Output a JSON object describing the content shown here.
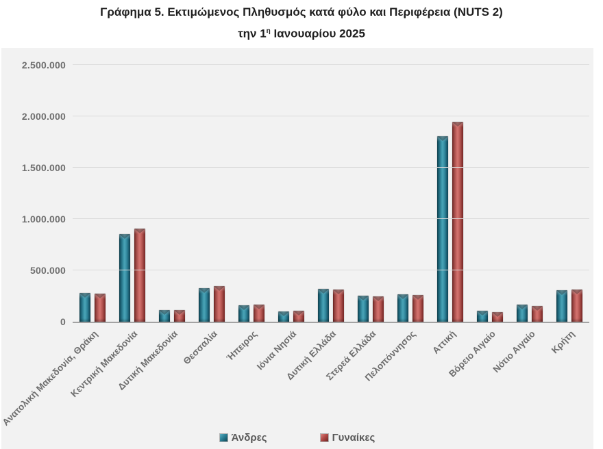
{
  "title": {
    "line1": "Γράφημα 5. Εκτιμώμενος Πληθυσμός κατά φύλο και Περιφέρεια (NUTS 2)",
    "line2_prefix": "την 1",
    "line2_sup": "η",
    "line2_suffix": " Ιανουαρίου 2025"
  },
  "colors": {
    "men_accent": "#2a7f95",
    "women_accent": "#b24a47",
    "canvas_background": "#f2f2f2",
    "gridline": "#d9d9d9",
    "axis_line": "#a3a3a3",
    "axis_text": "#6e6e6e",
    "title_text": "#1f1f1f"
  },
  "chart_data": {
    "type": "bar",
    "title": "Γράφημα 5. Εκτιμώμενος Πληθυσμός κατά φύλο και Περιφέρεια (NUTS 2) την 1η Ιανουαρίου 2025",
    "xlabel": "",
    "ylabel": "",
    "ylim": [
      0,
      2500000
    ],
    "grid": true,
    "legend_position": "bottom",
    "yticks": [
      "0",
      "500.000",
      "1.000.000",
      "1.500.000",
      "2.000.000",
      "2.500.000"
    ],
    "ytick_values": [
      0,
      500000,
      1000000,
      1500000,
      2000000,
      2500000
    ],
    "categories": [
      "Ανατολική Μακεδονία, Θράκη",
      "Κεντρική Μακεδονία",
      "Δυτική Μακεδονία",
      "Θεσσαλία",
      "Ήπειρος",
      "Ιόνια Νησιά",
      "Δυτική Ελλάδα",
      "Στερεά Ελλάδα",
      "Πελοπόννησος",
      "Αττική",
      "Βόρειο Αιγαίο",
      "Νότιο Αιγαίο",
      "Κρήτη"
    ],
    "series": [
      {
        "name": "Άνδρες",
        "color": "#2a7f95",
        "values": [
          278000,
          852000,
          116000,
          330000,
          158000,
          98000,
          317000,
          256000,
          266000,
          1810000,
          105000,
          168000,
          306000
        ]
      },
      {
        "name": "Γυναίκες",
        "color": "#b24a47",
        "values": [
          275000,
          906000,
          113000,
          344000,
          165000,
          104000,
          313000,
          250000,
          261000,
          1945000,
          94000,
          155000,
          315000
        ]
      }
    ]
  }
}
